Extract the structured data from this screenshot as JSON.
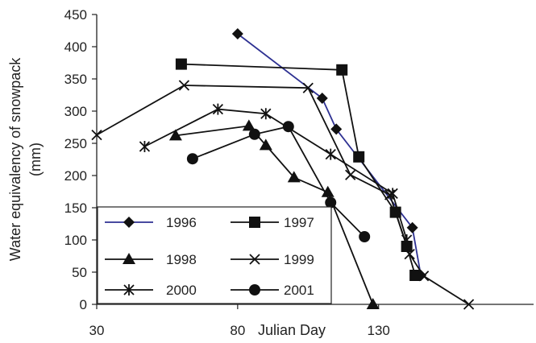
{
  "chart_data": {
    "type": "line",
    "title": "",
    "xlabel": "Julian Day",
    "ylabel": "Water equivalency of snowpack (mm)",
    "ylabel_lines": [
      "Water equivalency of snowpack",
      "(mm)"
    ],
    "xlim": [
      30,
      185
    ],
    "ylim": [
      0,
      450
    ],
    "xticks": [
      30,
      80,
      130
    ],
    "yticks": [
      0,
      50,
      100,
      150,
      200,
      250,
      300,
      350,
      400,
      450
    ],
    "grid": false,
    "legend_position": "bottom-left",
    "series": [
      {
        "name": "1996",
        "marker": "diamond",
        "color": "#2e3192",
        "points": [
          [
            80,
            420
          ],
          [
            110,
            320
          ],
          [
            115,
            272
          ],
          [
            142,
            119
          ],
          [
            145,
            45
          ]
        ]
      },
      {
        "name": "1997",
        "marker": "square",
        "color": "#111111",
        "points": [
          [
            60,
            373
          ],
          [
            117,
            364
          ],
          [
            123,
            229
          ],
          [
            136,
            143
          ],
          [
            140,
            90
          ],
          [
            143,
            45
          ]
        ]
      },
      {
        "name": "1998",
        "marker": "triangle",
        "color": "#111111",
        "points": [
          [
            58,
            262
          ],
          [
            84,
            277
          ],
          [
            90,
            247
          ],
          [
            100,
            197
          ],
          [
            112,
            174
          ],
          [
            128,
            0
          ]
        ]
      },
      {
        "name": "1999",
        "marker": "x",
        "color": "#111111",
        "points": [
          [
            30,
            263
          ],
          [
            61,
            340
          ],
          [
            105,
            336
          ],
          [
            120,
            201
          ],
          [
            134,
            170
          ],
          [
            141,
            78
          ],
          [
            146,
            44
          ],
          [
            162,
            0
          ]
        ]
      },
      {
        "name": "2000",
        "marker": "star",
        "color": "#111111",
        "points": [
          [
            47,
            245
          ],
          [
            73,
            303
          ],
          [
            90,
            296
          ],
          [
            113,
            233
          ],
          [
            135,
            172
          ],
          [
            140,
            100
          ]
        ]
      },
      {
        "name": "2001",
        "marker": "circle",
        "color": "#111111",
        "points": [
          [
            64,
            226
          ],
          [
            86,
            264
          ],
          [
            98,
            276
          ],
          [
            113,
            158
          ],
          [
            125,
            105
          ]
        ]
      }
    ]
  }
}
